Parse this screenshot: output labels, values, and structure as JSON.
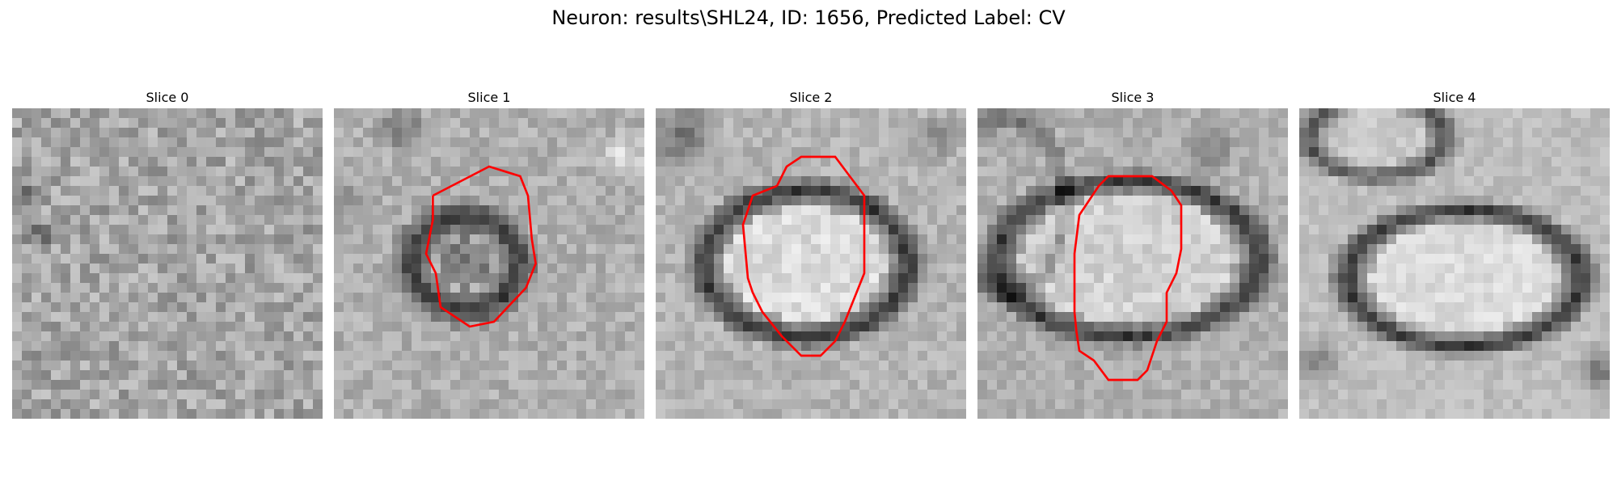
{
  "figure": {
    "suptitle": "Neuron: results\\SHL24, ID: 1656, Predicted Label: CV",
    "contour_color": "#ff0000"
  },
  "panels": [
    {
      "title": "Slice 0",
      "has_contour": false
    },
    {
      "title": "Slice 1",
      "has_contour": true
    },
    {
      "title": "Slice 2",
      "has_contour": true
    },
    {
      "title": "Slice 3",
      "has_contour": true
    },
    {
      "title": "Slice 4",
      "has_contour": false
    }
  ]
}
